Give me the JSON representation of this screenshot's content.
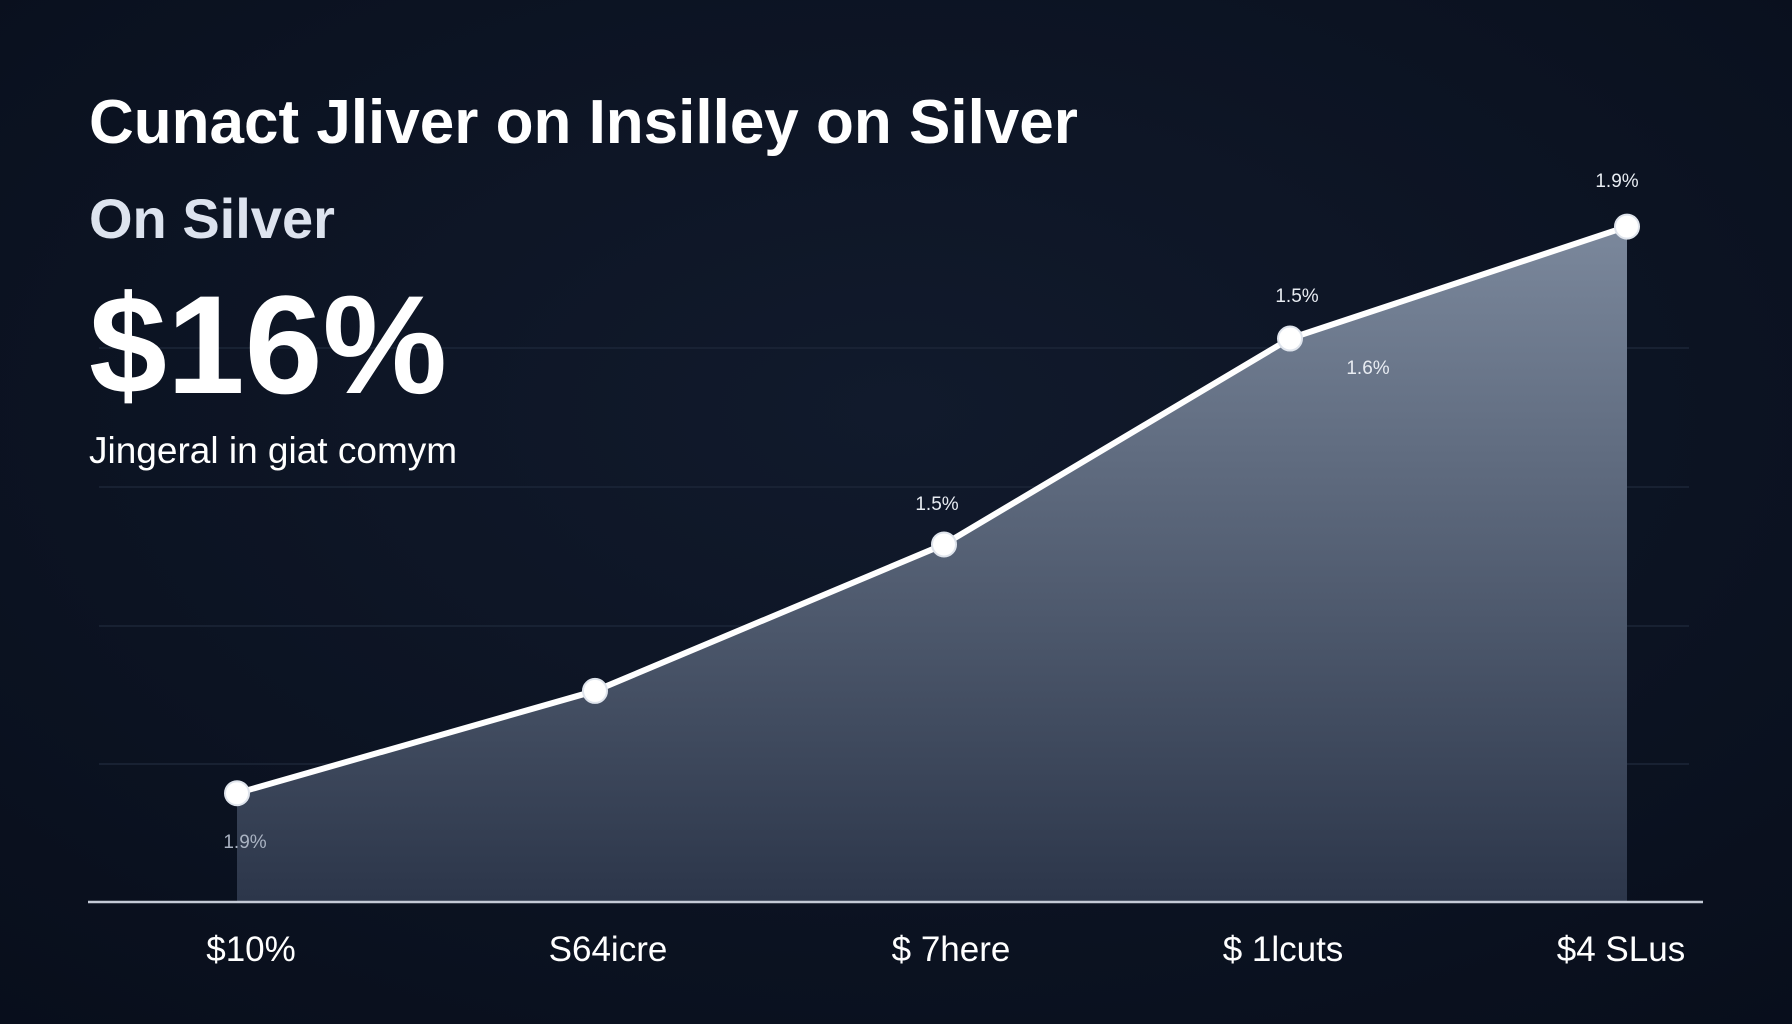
{
  "chart_data": {
    "type": "area",
    "title": "Cunact Jliver on Insilley on Silver",
    "subtitle": "On Silver",
    "headline": "$16%",
    "caption": "Jingeral in giat comym",
    "categories": [
      "$10%",
      "S64icre",
      "$ 7here",
      "$ 1lcuts",
      "$4 SLus"
    ],
    "values": [
      0.78,
      1.52,
      2.58,
      4.07,
      4.88
    ],
    "ylim": [
      0,
      5
    ],
    "color": "#ffffff",
    "annotations": [
      "1.9%",
      "1.5%",
      "1.6%",
      "1.5%",
      "1.9%"
    ]
  }
}
